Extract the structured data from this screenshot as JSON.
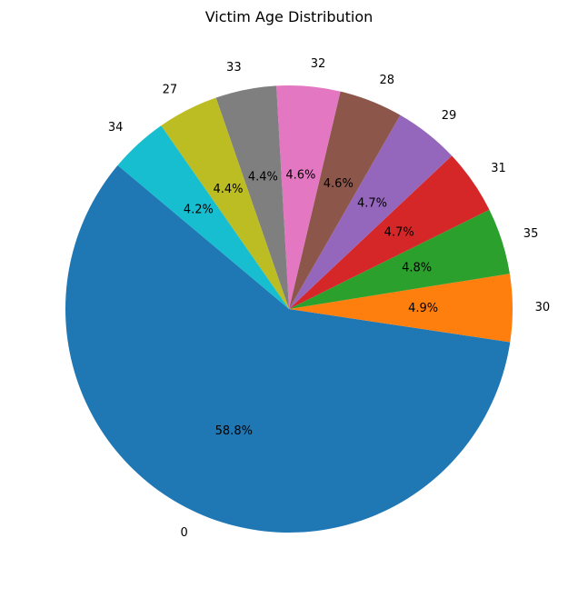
{
  "chart_data": {
    "type": "pie",
    "title": "Victim Age Distribution",
    "categories": [
      "0",
      "30",
      "35",
      "31",
      "29",
      "28",
      "32",
      "33",
      "27",
      "34"
    ],
    "values": [
      58.8,
      4.9,
      4.8,
      4.7,
      4.7,
      4.6,
      4.6,
      4.4,
      4.4,
      4.2
    ],
    "percent_labels": [
      "58.8%",
      "4.9%",
      "4.8%",
      "4.7%",
      "4.7%",
      "4.6%",
      "4.6%",
      "4.4%",
      "4.4%",
      "4.2%"
    ],
    "colors": [
      "#1f77b4",
      "#ff7f0e",
      "#2ca02c",
      "#d62728",
      "#9467bd",
      "#8c564b",
      "#e377c2",
      "#7f7f7f",
      "#bcbd22",
      "#17becf"
    ],
    "start_angle_deg": 140,
    "direction": "counterclockwise",
    "legend": "none"
  }
}
